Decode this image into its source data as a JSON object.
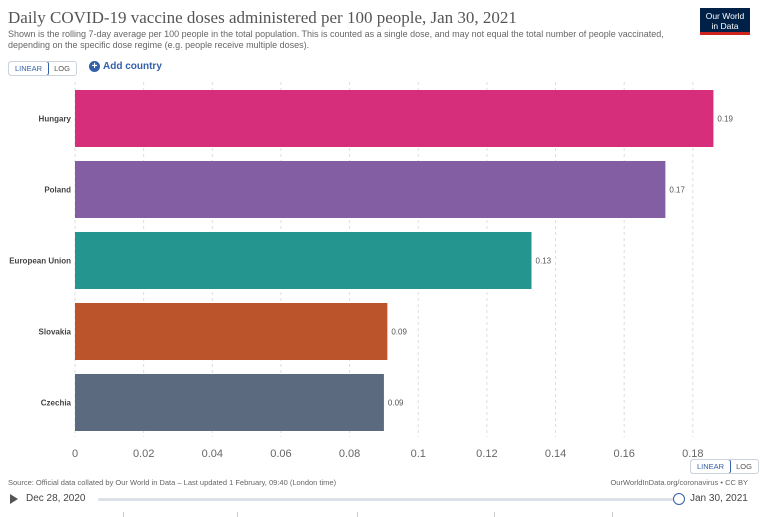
{
  "header": {
    "title": "Daily COVID-19 vaccine doses administered per 100 people, Jan 30, 2021",
    "subtitle": "Shown is the rolling 7-day average per 100 people in the total population. This is counted as a single dose, and may not equal the total number of people vaccinated, depending on the specific dose regime (e.g. people receive multiple doses).",
    "logo_line1": "Our World",
    "logo_line2": "in Data",
    "logo_color": "#002147",
    "logo_accent": "#ce261e"
  },
  "controls": {
    "linear_label": "LINEAR",
    "log_label": "LOG",
    "add_country_label": "Add country",
    "accent": "#3360a9"
  },
  "chart_data": {
    "type": "bar",
    "orientation": "horizontal",
    "categories": [
      "Hungary",
      "Poland",
      "European Union",
      "Slovakia",
      "Czechia"
    ],
    "values": [
      0.19,
      0.17,
      0.13,
      0.09,
      0.09
    ],
    "bar_lengths": [
      0.186,
      0.172,
      0.133,
      0.091,
      0.09
    ],
    "value_labels": [
      "0.19",
      "0.17",
      "0.13",
      "0.09",
      "0.09"
    ],
    "colors": [
      "#d62e7b",
      "#845ea3",
      "#25958f",
      "#bb532b",
      "#5b6a7e"
    ],
    "xlim": [
      0,
      0.185
    ],
    "xticks": [
      0,
      0.02,
      0.04,
      0.06,
      0.08,
      0.1,
      0.12,
      0.14,
      0.16,
      0.18
    ],
    "xtick_labels": [
      "0",
      "0.02",
      "0.04",
      "0.06",
      "0.08",
      "0.1",
      "0.12",
      "0.14",
      "0.16",
      "0.18"
    ],
    "grid": true
  },
  "footer": {
    "source": "Source: Official data collated by Our World in Data – Last updated 1 February, 09:40 (London time)",
    "url": "OurWorldInData.org/coronavirus • CC BY"
  },
  "timeline": {
    "start_date": "Dec 28, 2020",
    "end_date": "Jan 30, 2021"
  }
}
